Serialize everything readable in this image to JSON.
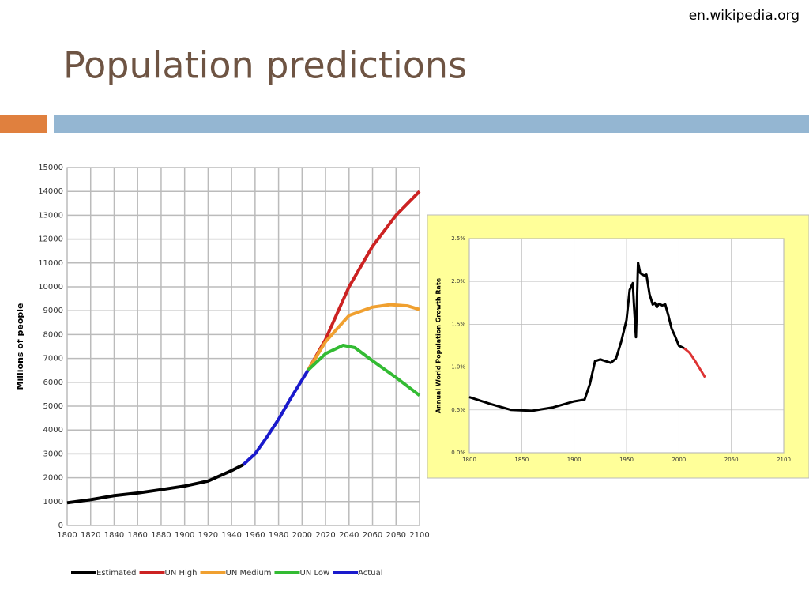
{
  "title": "Population predictions",
  "source": "en.wikipedia.org",
  "chart_data": [
    {
      "type": "line",
      "ylabel": "Millions of people",
      "xlim": [
        1800,
        2100
      ],
      "ylim": [
        0,
        15000
      ],
      "xticks": [
        1800,
        1820,
        1840,
        1860,
        1880,
        1900,
        1920,
        1940,
        1960,
        1980,
        2000,
        2020,
        2040,
        2060,
        2080,
        2100
      ],
      "yticks": [
        0,
        1000,
        2000,
        3000,
        4000,
        5000,
        6000,
        7000,
        8000,
        9000,
        10000,
        11000,
        12000,
        13000,
        14000,
        15000
      ],
      "grid": true,
      "legend": "bottom",
      "background": "#ffffff",
      "series": [
        {
          "name": "Estimated",
          "color": "#000000",
          "x": [
            1800,
            1820,
            1840,
            1860,
            1880,
            1900,
            1920,
            1940,
            1950
          ],
          "values": [
            950,
            1080,
            1250,
            1360,
            1500,
            1650,
            1860,
            2300,
            2550
          ]
        },
        {
          "name": "UN High",
          "color": "#cc2222",
          "x": [
            2005,
            2020,
            2040,
            2060,
            2080,
            2100
          ],
          "values": [
            6500,
            7800,
            10000,
            11700,
            13000,
            14000
          ]
        },
        {
          "name": "UN Medium",
          "color": "#f0a030",
          "x": [
            2005,
            2020,
            2040,
            2060,
            2075,
            2090,
            2100
          ],
          "values": [
            6500,
            7700,
            8800,
            9150,
            9250,
            9200,
            9050
          ]
        },
        {
          "name": "UN Low",
          "color": "#33bb33",
          "x": [
            2005,
            2020,
            2035,
            2045,
            2060,
            2080,
            2100
          ],
          "values": [
            6500,
            7200,
            7550,
            7450,
            6900,
            6200,
            5450
          ]
        },
        {
          "name": "Actual",
          "color": "#1a1acc",
          "x": [
            1950,
            1960,
            1970,
            1980,
            1990,
            2000,
            2005
          ],
          "values": [
            2550,
            3000,
            3700,
            4450,
            5300,
            6100,
            6500
          ]
        }
      ]
    },
    {
      "type": "line",
      "ylabel": "Annual World Population Growth Rate",
      "xlim": [
        1800,
        2100
      ],
      "ylim": [
        0,
        2.5
      ],
      "xticks": [
        1800,
        1850,
        1900,
        1950,
        2000,
        2050,
        2100
      ],
      "yticks": [
        {
          "value": 0,
          "label": "0.0%"
        },
        {
          "value": 0.5,
          "label": "0.5%"
        },
        {
          "value": 1,
          "label": "1.0%"
        },
        {
          "value": 1.5,
          "label": "1.5%"
        },
        {
          "value": 2,
          "label": "2.0%"
        },
        {
          "value": 2.5,
          "label": "2.5%"
        }
      ],
      "grid": true,
      "background": "#ffff99",
      "series": [
        {
          "color": "#000000",
          "x": [
            1800,
            1820,
            1840,
            1860,
            1880,
            1900,
            1910,
            1915,
            1920,
            1925,
            1935,
            1940,
            1945,
            1950,
            1953,
            1956,
            1957,
            1959,
            1961,
            1963,
            1965,
            1967,
            1969,
            1972,
            1975,
            1977,
            1979,
            1981,
            1984,
            1987,
            1990,
            1993,
            1996,
            2000,
            2005
          ],
          "values": [
            0.65,
            0.57,
            0.5,
            0.49,
            0.53,
            0.6,
            0.62,
            0.8,
            1.07,
            1.09,
            1.05,
            1.1,
            1.3,
            1.55,
            1.9,
            1.98,
            1.75,
            1.35,
            2.22,
            2.1,
            2.08,
            2.07,
            2.08,
            1.85,
            1.73,
            1.75,
            1.7,
            1.74,
            1.72,
            1.73,
            1.6,
            1.45,
            1.37,
            1.25,
            1.22
          ]
        },
        {
          "color": "#dd3333",
          "x": [
            2005,
            2010,
            2015,
            2020,
            2025
          ],
          "values": [
            1.22,
            1.17,
            1.08,
            0.98,
            0.88
          ]
        }
      ]
    }
  ]
}
